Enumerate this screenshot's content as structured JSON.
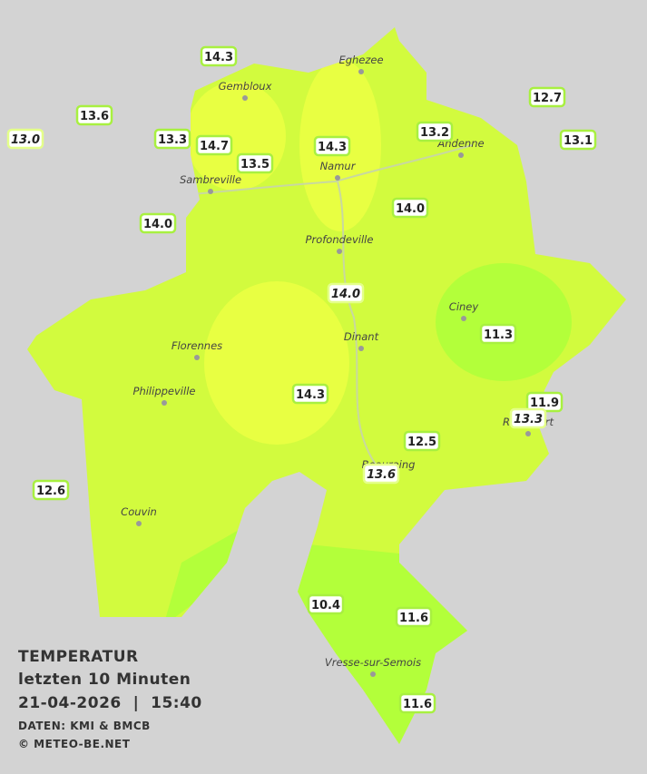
{
  "title": "TEMPERATUR",
  "subtitle": "letzten 10 Minuten",
  "datetime": "21-04-2026  |  15:40",
  "credits": [
    "DATEN: KMI & BMCB",
    "© METEO-BE.NET"
  ],
  "cities": [
    "Eghezee",
    "Gembloux",
    "Andenne",
    "Namur",
    "Sambreville",
    "Profondeville",
    "Ciney",
    "Florennes",
    "Dinant",
    "Philippeville",
    "Rochefort",
    "Beauraing",
    "Couvin",
    "Vresse-sur-Semois"
  ],
  "stations": [
    "14.3",
    "13.6",
    "13.0",
    "13.3",
    "14.7",
    "13.5",
    "14.3",
    "13.2",
    "12.7",
    "13.1",
    "14.0",
    "14.0",
    "14.0",
    "11.3",
    "14.3",
    "11.9",
    "13.3",
    "12.5",
    "13.6",
    "12.6",
    "10.4",
    "11.6",
    "11.6"
  ]
}
